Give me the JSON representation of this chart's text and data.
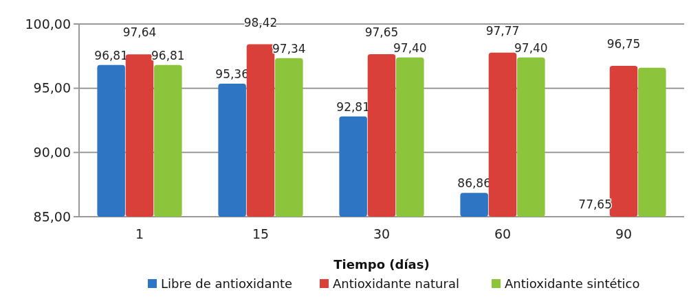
{
  "chart_data": {
    "type": "bar",
    "xlabel": "Tiempo (días)",
    "categories": [
      "1",
      "15",
      "30",
      "60",
      "90"
    ],
    "series": [
      {
        "name": "Libre de antioxidante",
        "color": "#2e75c4",
        "values": [
          96.81,
          95.36,
          92.81,
          86.86,
          null
        ],
        "value_labels": [
          "96,81",
          "95,36",
          "92,81",
          "86,86",
          null
        ]
      },
      {
        "name": "Antioxidante natural",
        "color": "#d9403a",
        "values": [
          97.64,
          98.42,
          97.65,
          97.77,
          96.75
        ],
        "value_labels": [
          "97,64",
          "98,42",
          "97,65",
          "97,77",
          "96,75"
        ]
      },
      {
        "name": "Antioxidante sintético",
        "color": "#8cc43c",
        "values": [
          96.81,
          97.34,
          97.4,
          97.4,
          96.6
        ],
        "value_labels": [
          "96,81",
          "97,34",
          "97,40",
          "97,40",
          null
        ]
      }
    ],
    "ylim": [
      85,
      100
    ],
    "yticks": [
      {
        "value": 85,
        "label": "85,00"
      },
      {
        "value": 90,
        "label": "90,00"
      },
      {
        "value": 95,
        "label": "95,00"
      },
      {
        "value": 100,
        "label": "100,00"
      }
    ],
    "grid": "y",
    "legend": "bottom",
    "annotations": [
      {
        "text": "77,65",
        "x": "90",
        "y": 85
      }
    ]
  }
}
